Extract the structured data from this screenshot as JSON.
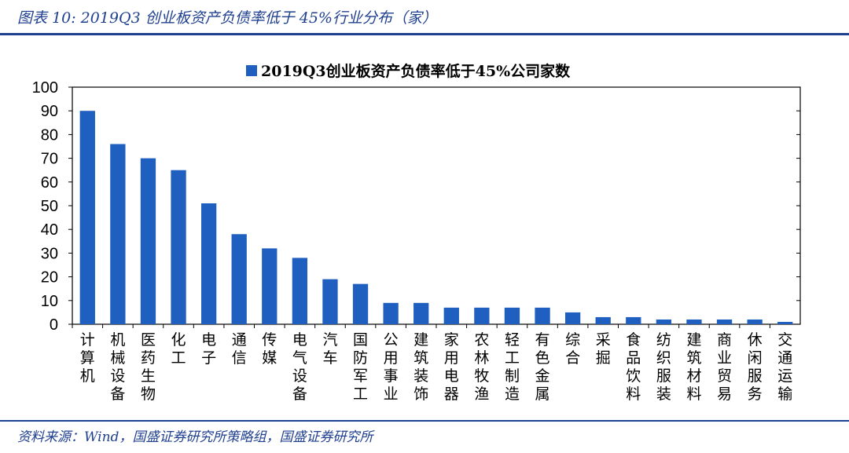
{
  "figure_title": "图表 10:  2019Q3 创业板资产负债率低于 45%行业分布（家）",
  "source": "资料来源：Wind，国盛证券研究所策略组，国盛证券研究所",
  "colors": {
    "bar": "#1f5fbf",
    "accent": "#1f3f8f"
  },
  "chart_data": {
    "type": "bar",
    "legend": {
      "position": "top-center",
      "entries": [
        "2019Q3创业板资产负债率低于45%公司家数"
      ]
    },
    "categories": [
      "计算机",
      "机械设备",
      "医药生物",
      "化工",
      "电子",
      "通信",
      "传媒",
      "电气设备",
      "汽车",
      "国防军工",
      "公用事业",
      "建筑装饰",
      "家用电器",
      "农林牧渔",
      "轻工制造",
      "有色金属",
      "综合",
      "采掘",
      "食品饮料",
      "纺织服装",
      "建筑材料",
      "商业贸易",
      "休闲服务",
      "交通运输"
    ],
    "series": [
      {
        "name": "2019Q3创业板资产负债率低于45%公司家数",
        "values": [
          90,
          76,
          70,
          65,
          51,
          38,
          32,
          28,
          19,
          17,
          9,
          9,
          7,
          7,
          7,
          7,
          5,
          3,
          3,
          2,
          2,
          2,
          2,
          1
        ]
      }
    ],
    "yticks": [
      0,
      10,
      20,
      30,
      40,
      50,
      60,
      70,
      80,
      90,
      100
    ],
    "ylim": [
      0,
      100
    ],
    "grid": false
  }
}
